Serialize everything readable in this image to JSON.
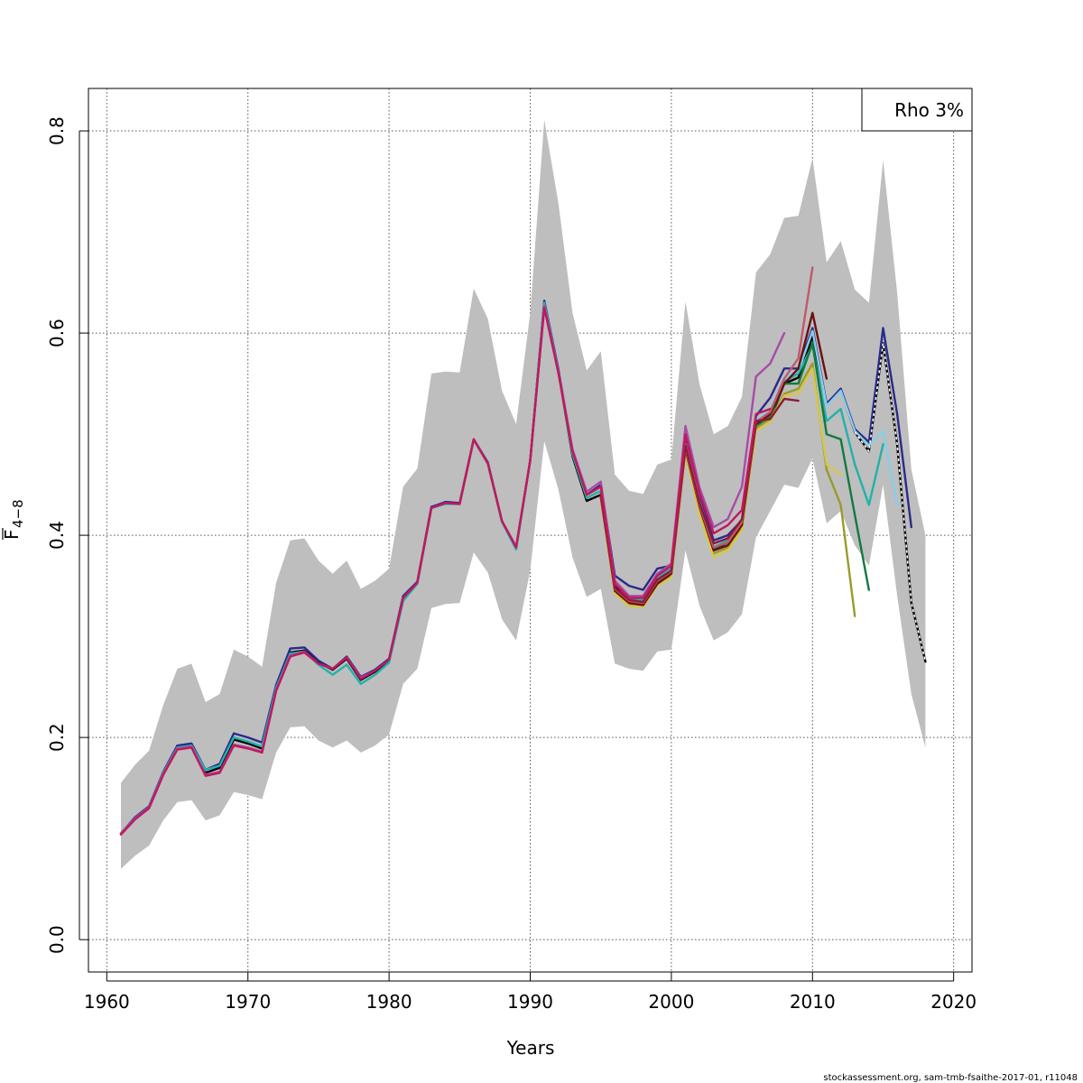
{
  "chart_data": {
    "type": "line",
    "title": "",
    "xlabel": "Years",
    "ylabel_main": "F",
    "ylabel_sub": "4−8",
    "xlim": [
      1958.7,
      2021.3
    ],
    "ylim": [
      -0.032,
      0.842
    ],
    "xticks": [
      1960,
      1970,
      1980,
      1990,
      2000,
      2010,
      2020
    ],
    "xtick_labels": [
      "1960",
      "1970",
      "1980",
      "1990",
      "2000",
      "2010",
      "2020"
    ],
    "yticks": [
      0,
      0.2,
      0.4,
      0.6,
      0.8
    ],
    "ytick_labels": [
      "0.0",
      "0.2",
      "0.4",
      "0.6",
      "0.8"
    ],
    "grid": true,
    "legend": {
      "position": "top-right",
      "text": "Rho 3%"
    },
    "footer": "stockassessment.org, sam-tmb-fsaithe-2017-01, r11048",
    "band": {
      "color": "#bebebe",
      "x": [
        1961,
        1962,
        1963,
        1964,
        1965,
        1966,
        1967,
        1968,
        1969,
        1970,
        1971,
        1972,
        1973,
        1974,
        1975,
        1976,
        1977,
        1978,
        1979,
        1980,
        1981,
        1982,
        1983,
        1984,
        1985,
        1986,
        1987,
        1988,
        1989,
        1990,
        1991,
        1992,
        1993,
        1994,
        1995,
        1996,
        1997,
        1998,
        1999,
        2000,
        2001,
        2002,
        2003,
        2004,
        2005,
        2006,
        2007,
        2008,
        2009,
        2010,
        2011,
        2012,
        2013,
        2014,
        2015,
        2016,
        2017,
        2018
      ],
      "upper": [
        0.155,
        0.173,
        0.187,
        0.232,
        0.268,
        0.273,
        0.235,
        0.243,
        0.287,
        0.28,
        0.27,
        0.353,
        0.395,
        0.397,
        0.375,
        0.362,
        0.375,
        0.347,
        0.355,
        0.367,
        0.448,
        0.466,
        0.56,
        0.562,
        0.561,
        0.644,
        0.614,
        0.543,
        0.51,
        0.62,
        0.811,
        0.728,
        0.62,
        0.563,
        0.582,
        0.46,
        0.444,
        0.441,
        0.47,
        0.475,
        0.631,
        0.549,
        0.5,
        0.508,
        0.537,
        0.66,
        0.678,
        0.714,
        0.716,
        0.773,
        0.67,
        0.691,
        0.643,
        0.63,
        0.771,
        0.64,
        0.465,
        0.4
      ],
      "lower": [
        0.07,
        0.083,
        0.093,
        0.118,
        0.136,
        0.138,
        0.118,
        0.123,
        0.146,
        0.143,
        0.139,
        0.185,
        0.21,
        0.211,
        0.197,
        0.19,
        0.197,
        0.185,
        0.192,
        0.203,
        0.253,
        0.268,
        0.328,
        0.332,
        0.333,
        0.383,
        0.363,
        0.317,
        0.296,
        0.365,
        0.493,
        0.445,
        0.378,
        0.339,
        0.347,
        0.273,
        0.268,
        0.266,
        0.285,
        0.287,
        0.385,
        0.33,
        0.296,
        0.304,
        0.322,
        0.398,
        0.424,
        0.45,
        0.447,
        0.476,
        0.412,
        0.424,
        0.39,
        0.37,
        0.45,
        0.34,
        0.243,
        0.19
      ]
    },
    "series": [
      {
        "color": "#000000",
        "dashed": false,
        "x": [
          1961,
          1962,
          1963,
          1964,
          1965,
          1966,
          1967,
          1968,
          1969,
          1970,
          1971,
          1972,
          1973,
          1974,
          1975,
          1976,
          1977,
          1978,
          1979,
          1980,
          1981,
          1982,
          1983,
          1984,
          1985,
          1986,
          1987,
          1988,
          1989,
          1990,
          1991,
          1992,
          1993,
          1994,
          1995,
          1996,
          1997,
          1998,
          1999,
          2000,
          2001,
          2002,
          2003,
          2004,
          2005,
          2006,
          2007,
          2008,
          2009,
          2010,
          2011,
          2012,
          2013,
          2014,
          2015,
          2016,
          2017,
          2018
        ],
        "values": [
          0.105,
          0.12,
          0.131,
          0.165,
          0.19,
          0.192,
          0.165,
          0.17,
          0.198,
          0.194,
          0.189,
          0.25,
          0.284,
          0.286,
          0.274,
          0.267,
          0.278,
          0.257,
          0.265,
          0.276,
          0.338,
          0.353,
          0.428,
          0.432,
          0.431,
          0.495,
          0.471,
          0.414,
          0.388,
          0.474,
          0.63,
          0.562,
          0.478,
          0.434,
          0.44,
          0.35,
          0.335,
          0.333,
          0.355,
          0.365,
          0.488,
          0.43,
          0.387,
          0.393,
          0.411,
          0.511,
          0.515,
          0.55,
          0.556,
          0.597,
          0.53,
          0.544,
          0.502,
          0.483,
          0.59,
          0.49,
          0.333,
          0.275
        ]
      },
      {
        "color": "#ffffff",
        "dashed": true,
        "x": [
          2013,
          2014,
          2015,
          2016,
          2017,
          2018
        ],
        "values": [
          0.502,
          0.483,
          0.59,
          0.49,
          0.333,
          0.275
        ]
      },
      {
        "color": "#2a2a8c",
        "dashed": false,
        "x": [
          1961,
          1962,
          1963,
          1964,
          1965,
          1966,
          1967,
          1968,
          1969,
          1970,
          1971,
          1972,
          1973,
          1974,
          1975,
          1976,
          1977,
          1978,
          1979,
          1980,
          1981,
          1982,
          1983,
          1984,
          1985,
          1986,
          1987,
          1988,
          1989,
          1990,
          1991,
          1992,
          1993,
          1994,
          1995,
          1996,
          1997,
          1998,
          1999,
          2000,
          2001,
          2002,
          2003,
          2004,
          2005,
          2006,
          2007,
          2008,
          2009,
          2010,
          2011,
          2012,
          2013,
          2014,
          2015,
          2016,
          2017
        ],
        "values": [
          0.105,
          0.121,
          0.132,
          0.166,
          0.192,
          0.194,
          0.168,
          0.174,
          0.204,
          0.2,
          0.195,
          0.252,
          0.288,
          0.289,
          0.276,
          0.268,
          0.28,
          0.26,
          0.267,
          0.278,
          0.34,
          0.354,
          0.428,
          0.433,
          0.432,
          0.495,
          0.472,
          0.414,
          0.387,
          0.474,
          0.632,
          0.564,
          0.482,
          0.44,
          0.45,
          0.36,
          0.35,
          0.346,
          0.367,
          0.37,
          0.495,
          0.438,
          0.395,
          0.4,
          0.415,
          0.518,
          0.536,
          0.565,
          0.565,
          0.605,
          0.53,
          0.545,
          0.505,
          0.492,
          0.605,
          0.52,
          0.408
        ]
      },
      {
        "color": "#87ceeb",
        "dashed": false,
        "x": [
          1995,
          1996,
          1997,
          1998,
          1999,
          2000,
          2001,
          2002,
          2003,
          2004,
          2005,
          2006,
          2007,
          2008,
          2009,
          2010,
          2011,
          2012,
          2013,
          2014,
          2015,
          2016
        ],
        "values": [
          0.441,
          0.352,
          0.34,
          0.338,
          0.36,
          0.37,
          0.49,
          0.433,
          0.39,
          0.396,
          0.413,
          0.513,
          0.525,
          0.556,
          0.562,
          0.602,
          0.528,
          0.543,
          0.503,
          0.489,
          0.503,
          0.43
        ]
      },
      {
        "color": "#20b2aa",
        "dashed": false,
        "x": [
          1961,
          1962,
          1963,
          1964,
          1965,
          1966,
          1967,
          1968,
          1969,
          1970,
          1971,
          1972,
          1973,
          1974,
          1975,
          1976,
          1977,
          1978,
          1979,
          1980,
          1981,
          1982,
          1983,
          1984,
          1985,
          1986,
          1987,
          1988,
          1989,
          1990,
          1991,
          1992,
          1993,
          1994,
          1995,
          1996,
          1997,
          1998,
          1999,
          2000,
          2001,
          2002,
          2003,
          2004,
          2005,
          2006,
          2007,
          2008,
          2009,
          2010,
          2011,
          2012,
          2013,
          2014,
          2015
        ],
        "values": [
          0.105,
          0.12,
          0.131,
          0.165,
          0.19,
          0.192,
          0.168,
          0.172,
          0.2,
          0.196,
          0.191,
          0.249,
          0.283,
          0.285,
          0.272,
          0.262,
          0.272,
          0.253,
          0.262,
          0.274,
          0.335,
          0.352,
          0.427,
          0.431,
          0.431,
          0.494,
          0.471,
          0.413,
          0.386,
          0.474,
          0.63,
          0.562,
          0.48,
          0.437,
          0.444,
          0.347,
          0.338,
          0.336,
          0.358,
          0.368,
          0.487,
          0.43,
          0.388,
          0.395,
          0.412,
          0.512,
          0.522,
          0.552,
          0.56,
          0.588,
          0.513,
          0.525,
          0.47,
          0.43,
          0.49
        ]
      },
      {
        "color": "#117a3f",
        "dashed": false,
        "x": [
          1995,
          1996,
          1997,
          1998,
          1999,
          2000,
          2001,
          2002,
          2003,
          2004,
          2005,
          2006,
          2007,
          2008,
          2009,
          2010,
          2011,
          2012,
          2013,
          2014
        ],
        "values": [
          0.44,
          0.345,
          0.333,
          0.332,
          0.353,
          0.362,
          0.484,
          0.426,
          0.386,
          0.39,
          0.41,
          0.507,
          0.518,
          0.55,
          0.55,
          0.59,
          0.5,
          0.495,
          0.42,
          0.346
        ]
      },
      {
        "color": "#9a9a2a",
        "dashed": false,
        "x": [
          1995,
          1996,
          1997,
          1998,
          1999,
          2000,
          2001,
          2002,
          2003,
          2004,
          2005,
          2006,
          2007,
          2008,
          2009,
          2010,
          2011,
          2012,
          2013
        ],
        "values": [
          0.437,
          0.344,
          0.331,
          0.33,
          0.352,
          0.36,
          0.482,
          0.425,
          0.382,
          0.388,
          0.408,
          0.506,
          0.515,
          0.54,
          0.545,
          0.57,
          0.465,
          0.43,
          0.32
        ]
      },
      {
        "color": "#d4c84a",
        "dashed": false,
        "x": [
          1995,
          1996,
          1997,
          1998,
          1999,
          2000,
          2001,
          2002,
          2003,
          2004,
          2005,
          2006,
          2007,
          2008,
          2009,
          2010,
          2011,
          2012
        ],
        "values": [
          0.435,
          0.342,
          0.33,
          0.329,
          0.35,
          0.358,
          0.48,
          0.42,
          0.378,
          0.385,
          0.405,
          0.503,
          0.512,
          0.538,
          0.54,
          0.565,
          0.47,
          0.46
        ]
      },
      {
        "color": "#6b0f0f",
        "dashed": false,
        "x": [
          1995,
          1996,
          1997,
          1998,
          1999,
          2000,
          2001,
          2002,
          2003,
          2004,
          2005,
          2006,
          2007,
          2008,
          2009,
          2010,
          2011
        ],
        "values": [
          0.438,
          0.345,
          0.333,
          0.331,
          0.352,
          0.362,
          0.485,
          0.428,
          0.385,
          0.39,
          0.41,
          0.51,
          0.52,
          0.55,
          0.565,
          0.62,
          0.555
        ]
      },
      {
        "color": "#c05a6a",
        "dashed": false,
        "x": [
          1995,
          1996,
          1997,
          1998,
          1999,
          2000,
          2001,
          2002,
          2003,
          2004,
          2005,
          2006,
          2007,
          2008,
          2009,
          2010
        ],
        "values": [
          0.44,
          0.347,
          0.335,
          0.333,
          0.355,
          0.364,
          0.487,
          0.43,
          0.388,
          0.393,
          0.413,
          0.512,
          0.522,
          0.555,
          0.575,
          0.665
        ]
      },
      {
        "color": "#8b1a3a",
        "dashed": false,
        "x": [
          1995,
          1996,
          1997,
          1998,
          1999,
          2000,
          2001,
          2002,
          2003,
          2004,
          2005,
          2006,
          2007,
          2008,
          2009
        ],
        "values": [
          0.441,
          0.348,
          0.336,
          0.334,
          0.356,
          0.365,
          0.489,
          0.432,
          0.392,
          0.397,
          0.416,
          0.513,
          0.515,
          0.535,
          0.533
        ]
      },
      {
        "color": "#a64ca6",
        "dashed": false,
        "x": [
          1961,
          1962,
          1963,
          1964,
          1965,
          1966,
          1967,
          1968,
          1969,
          1970,
          1971,
          1972,
          1973,
          1974,
          1975,
          1976,
          1977,
          1978,
          1979,
          1980,
          1981,
          1982,
          1983,
          1984,
          1985,
          1986,
          1987,
          1988,
          1989,
          1990,
          1991,
          1992,
          1993,
          1994,
          1995,
          1996,
          1997,
          1998,
          1999,
          2000,
          2001,
          2002,
          2003,
          2004,
          2005,
          2006,
          2007,
          2008
        ],
        "values": [
          0.105,
          0.12,
          0.131,
          0.164,
          0.189,
          0.191,
          0.163,
          0.166,
          0.193,
          0.19,
          0.186,
          0.247,
          0.281,
          0.285,
          0.273,
          0.268,
          0.279,
          0.259,
          0.266,
          0.277,
          0.338,
          0.353,
          0.427,
          0.432,
          0.431,
          0.495,
          0.471,
          0.414,
          0.389,
          0.474,
          0.627,
          0.562,
          0.485,
          0.443,
          0.453,
          0.355,
          0.34,
          0.34,
          0.362,
          0.372,
          0.508,
          0.447,
          0.408,
          0.416,
          0.448,
          0.557,
          0.57,
          0.6
        ]
      },
      {
        "color": "#c2185b",
        "dashed": false,
        "x": [
          1961,
          1962,
          1963,
          1964,
          1965,
          1966,
          1967,
          1968,
          1969,
          1970,
          1971,
          1972,
          1973,
          1974,
          1975,
          1976,
          1977,
          1978,
          1979,
          1980,
          1981,
          1982,
          1983,
          1984,
          1985,
          1986,
          1987,
          1988,
          1989,
          1990,
          1991,
          1992,
          1993,
          1994,
          1995,
          1996,
          1997,
          1998,
          1999,
          2000,
          2001,
          2002,
          2003,
          2004,
          2005,
          2006,
          2007
        ],
        "values": [
          0.104,
          0.119,
          0.13,
          0.163,
          0.188,
          0.19,
          0.162,
          0.165,
          0.192,
          0.189,
          0.185,
          0.246,
          0.28,
          0.284,
          0.273,
          0.268,
          0.279,
          0.258,
          0.266,
          0.277,
          0.338,
          0.353,
          0.427,
          0.432,
          0.431,
          0.495,
          0.471,
          0.414,
          0.388,
          0.474,
          0.625,
          0.56,
          0.483,
          0.44,
          0.448,
          0.352,
          0.338,
          0.338,
          0.36,
          0.37,
          0.5,
          0.442,
          0.402,
          0.41,
          0.425,
          0.52,
          0.525
        ]
      }
    ]
  }
}
